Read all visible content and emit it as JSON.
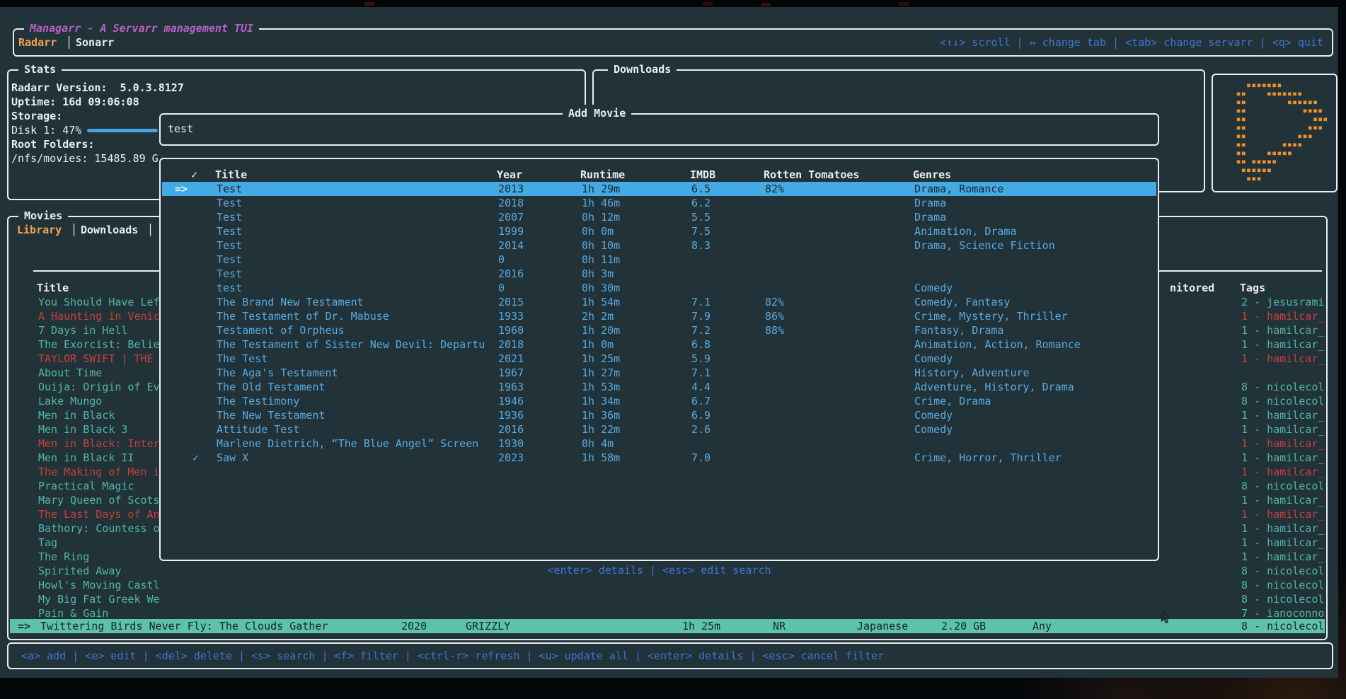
{
  "app": {
    "title": "Managarr - A Servarr management TUI",
    "tabs": [
      {
        "label": "Radarr"
      },
      {
        "label": "Sonarr"
      }
    ],
    "tab_separator": "│",
    "top_hints": "<↑↓> scroll | ↔ change tab | <tab> change servarr | <q> quit",
    "bottom_hints": "<a> add | <e> edit | <del> delete | <s> search | <f> filter | <ctrl-r> refresh | <u> update all | <enter> details | <esc> cancel filter"
  },
  "colors": {
    "background": "#223239",
    "border": "#e9eef0",
    "accent_orange": "#f2a352",
    "logo_orange": "#ee8f2c",
    "accent_purple": "#b561c4",
    "key_blue": "#3e74d2",
    "row_blue": "#58abe0",
    "selected_blue": "#45aae3",
    "list_teal": "#4fb7a6",
    "selected_teal": "#5ec2aa",
    "alert_red": "#c6403a"
  },
  "stats": {
    "title": "Stats",
    "lines": [
      {
        "text": "Radarr Version:  5.0.3.8127",
        "bold": true
      },
      {
        "text": "Uptime: 16d 09:06:08",
        "bold": true
      },
      {
        "text": "Storage:",
        "bold": true
      },
      {
        "text": "Disk 1: 47%",
        "bold": false,
        "gauge": 47
      },
      {
        "text": "Root Folders:",
        "bold": true
      },
      {
        "text": "/nfs/movies: 15485.89 G",
        "bold": false
      }
    ]
  },
  "downloads": {
    "title": "Downloads"
  },
  "movies": {
    "title": "Movies",
    "tabs": [
      {
        "label": "Library"
      },
      {
        "label": "Downloads"
      }
    ],
    "columns": {
      "title": "Title",
      "monitored": "nitored",
      "tags": "Tags"
    },
    "rows": [
      {
        "title": "You Should Have Lef",
        "tag": "2 - jesusrami",
        "red": false
      },
      {
        "title": "A Haunting in Venic",
        "tag": "1 - hamilcar_",
        "red": true
      },
      {
        "title": "7 Days in Hell",
        "tag": "1 - hamilcar_",
        "red": false
      },
      {
        "title": "The Exorcist: Belie",
        "tag": "1 - hamilcar_",
        "red": false
      },
      {
        "title": "TAYLOR SWIFT | THE",
        "tag": "1 - hamilcar_",
        "red": true
      },
      {
        "title": "About Time",
        "tag": "",
        "red": false
      },
      {
        "title": "Ouija: Origin of Ev",
        "tag": "8 - nicolecol",
        "red": false
      },
      {
        "title": "Lake Mungo",
        "tag": "8 - nicolecol",
        "red": false
      },
      {
        "title": "Men in Black",
        "tag": "1 - hamilcar_",
        "red": false
      },
      {
        "title": "Men in Black 3",
        "tag": "1 - hamilcar_",
        "red": false
      },
      {
        "title": "Men in Black: Inter",
        "tag": "1 - hamilcar_",
        "red": true
      },
      {
        "title": "Men in Black II",
        "tag": "1 - hamilcar_",
        "red": false
      },
      {
        "title": "The Making of Men i",
        "tag": "1 - hamilcar_",
        "red": true
      },
      {
        "title": "Practical Magic",
        "tag": "8 - nicolecol",
        "red": false
      },
      {
        "title": "Mary Queen of Scots",
        "tag": "1 - hamilcar_",
        "red": false
      },
      {
        "title": "The Last Days of An",
        "tag": "1 - hamilcar_",
        "red": true
      },
      {
        "title": "Bathory: Countess o",
        "tag": "1 - hamilcar_",
        "red": false
      },
      {
        "title": "Tag",
        "tag": "1 - hamilcar_",
        "red": false
      },
      {
        "title": "The Ring",
        "tag": "1 - hamilcar_",
        "red": false
      },
      {
        "title": "Spirited Away",
        "tag": "8 - nicolecol",
        "red": false
      },
      {
        "title": "Howl's Moving Castl",
        "tag": "8 - nicolecol",
        "red": false
      },
      {
        "title": "My Big Fat Greek We",
        "tag": "8 - nicolecol",
        "red": false
      },
      {
        "title": "Pain & Gain",
        "tag": "7 - ianoconno",
        "red": false
      }
    ],
    "selected": {
      "marker": "=>",
      "title": "Twittering Birds Never Fly: The Clouds Gather",
      "year": "2020",
      "studio": "GRIZZLY",
      "runtime": "1h 25m",
      "certification": "NR",
      "language": "Japanese",
      "size": "2.20 GB",
      "quality": "Any",
      "tag": "8 - nicolecol"
    }
  },
  "popup": {
    "title": "Add Movie",
    "search_value": "test",
    "selected_marker": "=>",
    "columns": [
      "✓",
      "Title",
      "Year",
      "Runtime",
      "IMDB",
      "Rotten Tomatoes",
      "Genres"
    ],
    "rows": [
      {
        "check": "",
        "title": "Test",
        "year": "2013",
        "runtime": "1h 29m",
        "imdb": "6.5",
        "rt": "82%",
        "genres": "Drama, Romance",
        "selected": true
      },
      {
        "check": "",
        "title": "Test",
        "year": "2018",
        "runtime": "1h 46m",
        "imdb": "6.2",
        "rt": "",
        "genres": "Drama"
      },
      {
        "check": "",
        "title": "Test",
        "year": "2007",
        "runtime": "0h 12m",
        "imdb": "5.5",
        "rt": "",
        "genres": "Drama"
      },
      {
        "check": "",
        "title": "Test",
        "year": "1999",
        "runtime": "0h 0m",
        "imdb": "7.5",
        "rt": "",
        "genres": "Animation, Drama"
      },
      {
        "check": "",
        "title": "Test",
        "year": "2014",
        "runtime": "0h 10m",
        "imdb": "8.3",
        "rt": "",
        "genres": "Drama, Science Fiction"
      },
      {
        "check": "",
        "title": "Test",
        "year": "0",
        "runtime": "0h 11m",
        "imdb": "",
        "rt": "",
        "genres": ""
      },
      {
        "check": "",
        "title": "Test",
        "year": "2016",
        "runtime": "0h 3m",
        "imdb": "",
        "rt": "",
        "genres": ""
      },
      {
        "check": "",
        "title": "test",
        "year": "0",
        "runtime": "0h 30m",
        "imdb": "",
        "rt": "",
        "genres": "Comedy"
      },
      {
        "check": "",
        "title": "The Brand New Testament",
        "year": "2015",
        "runtime": "1h 54m",
        "imdb": "7.1",
        "rt": "82%",
        "genres": "Comedy, Fantasy"
      },
      {
        "check": "",
        "title": "The Testament of Dr. Mabuse",
        "year": "1933",
        "runtime": "2h 2m",
        "imdb": "7.9",
        "rt": "86%",
        "genres": "Crime, Mystery, Thriller"
      },
      {
        "check": "",
        "title": "Testament of Orpheus",
        "year": "1960",
        "runtime": "1h 20m",
        "imdb": "7.2",
        "rt": "88%",
        "genres": "Fantasy, Drama"
      },
      {
        "check": "",
        "title": "The Testament of Sister New Devil: Departu",
        "year": "2018",
        "runtime": "1h 0m",
        "imdb": "6.8",
        "rt": "",
        "genres": "Animation, Action, Romance"
      },
      {
        "check": "",
        "title": "The Test",
        "year": "2021",
        "runtime": "1h 25m",
        "imdb": "5.9",
        "rt": "",
        "genres": "Comedy"
      },
      {
        "check": "",
        "title": "The Aga's Testament",
        "year": "1967",
        "runtime": "1h 27m",
        "imdb": "7.1",
        "rt": "",
        "genres": "History, Adventure"
      },
      {
        "check": "",
        "title": "The Old Testament",
        "year": "1963",
        "runtime": "1h 53m",
        "imdb": "4.4",
        "rt": "",
        "genres": "Adventure, History, Drama"
      },
      {
        "check": "",
        "title": "The Testimony",
        "year": "1946",
        "runtime": "1h 34m",
        "imdb": "6.7",
        "rt": "",
        "genres": "Crime, Drama"
      },
      {
        "check": "",
        "title": "The New Testament",
        "year": "1936",
        "runtime": "1h 36m",
        "imdb": "6.9",
        "rt": "",
        "genres": "Comedy"
      },
      {
        "check": "",
        "title": "Attitude Test",
        "year": "2016",
        "runtime": "1h 22m",
        "imdb": "2.6",
        "rt": "",
        "genres": "Comedy"
      },
      {
        "check": "",
        "title": "Marlene Dietrich, “The Blue Angel” Screen",
        "year": "1930",
        "runtime": "0h 4m",
        "imdb": "",
        "rt": "",
        "genres": ""
      },
      {
        "check": "✓",
        "title": "Saw X",
        "year": "2023",
        "runtime": "1h 58m",
        "imdb": "7.0",
        "rt": "",
        "genres": "Crime, Horror, Thriller"
      }
    ],
    "footer_hints": "<enter> details | <esc> edit search"
  },
  "logo": {
    "rows": [
      "    ▪▪▪▪▪▪▪          ",
      "  ▪▪    ▪▪▪▪▪▪▪      ",
      "  ▪▪        ▪▪▪▪▪▪   ",
      "  ▪▪           ▪▪▪▪  ",
      "  ▪▪             ▪▪▪ ",
      "  ▪▪            ▪▪▪  ",
      "  ▪▪          ▪▪▪    ",
      "  ▪▪       ▪▪▪▪      ",
      "  ▪▪    ▪▪▪▪▪        ",
      "  ▪▪ ▪▪▪▪▪           ",
      "   ▪▪▪▪▪▪            ",
      "    ▪▪▪              "
    ]
  }
}
